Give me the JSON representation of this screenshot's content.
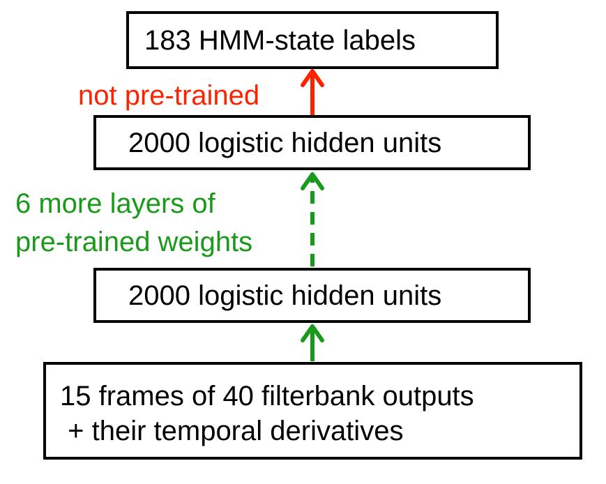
{
  "boxes": {
    "top": "183 HMM-state  labels",
    "hidden_upper": "2000 logistic hidden units",
    "hidden_lower": "2000 logistic hidden units",
    "input_line1": "15 frames of 40 filterbank outputs",
    "input_line2": " + their temporal derivatives"
  },
  "labels": {
    "not_pretrained": "not pre-trained",
    "pretrained_line1": "6 more layers of",
    "pretrained_line2": "pre-trained weights"
  },
  "colors": {
    "red": "#ff2200",
    "green": "#1a9a1a",
    "black": "#000000"
  }
}
